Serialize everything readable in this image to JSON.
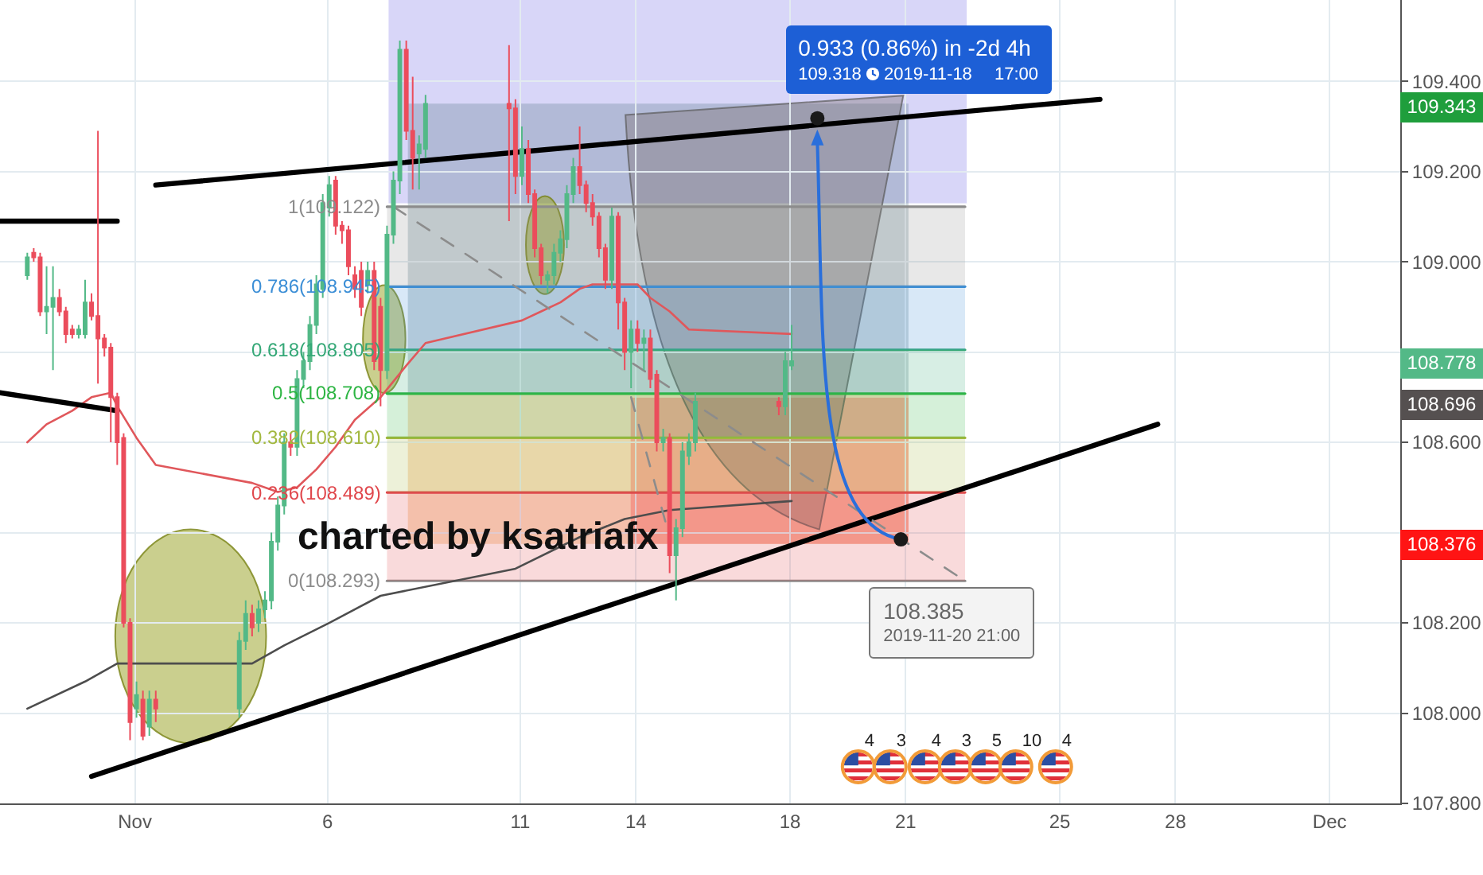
{
  "chart_data": {
    "type": "candlestick",
    "x": [
      "2019-10-29T05:00",
      "2019-10-29T09:00",
      "2019-10-29T13:00",
      "2019-10-29T17:00",
      "2019-10-29T21:00",
      "2019-10-30T01:00",
      "2019-10-30T05:00",
      "2019-10-30T09:00",
      "2019-10-30T13:00",
      "2019-10-30T17:00",
      "2019-10-30T21:00",
      "2019-10-31T01:00",
      "2019-10-31T05:00",
      "2019-10-31T09:00",
      "2019-10-31T13:00",
      "2019-10-31T17:00",
      "2019-10-31T21:00",
      "2019-11-01T01:00",
      "2019-11-01T05:00",
      "2019-11-01T09:00",
      "2019-11-01T13:00",
      "2019-11-03T17:00",
      "2019-11-03T21:00",
      "2019-11-04T01:00",
      "2019-11-04T05:00",
      "2019-11-04T09:00",
      "2019-11-04T13:00",
      "2019-11-04T17:00",
      "2019-11-04T21:00",
      "2019-11-05T01:00",
      "2019-11-05T05:00",
      "2019-11-05T09:00",
      "2019-11-05T13:00",
      "2019-11-05T17:00",
      "2019-11-05T21:00",
      "2019-11-06T01:00",
      "2019-11-06T05:00",
      "2019-11-06T09:00",
      "2019-11-06T13:00",
      "2019-11-06T17:00",
      "2019-11-06T21:00",
      "2019-11-07T01:00",
      "2019-11-07T05:00",
      "2019-11-07T09:00",
      "2019-11-07T13:00",
      "2019-11-07T17:00",
      "2019-11-07T21:00",
      "2019-11-08T01:00",
      "2019-11-08T05:00",
      "2019-11-08T09:00",
      "2019-11-08T13:00",
      "2019-11-10T17:00",
      "2019-11-10T21:00",
      "2019-11-11T01:00",
      "2019-11-11T05:00",
      "2019-11-11T09:00",
      "2019-11-11T13:00",
      "2019-11-11T17:00",
      "2019-11-11T21:00",
      "2019-11-12T01:00",
      "2019-11-12T05:00",
      "2019-11-12T09:00",
      "2019-11-12T13:00",
      "2019-11-12T17:00",
      "2019-11-12T21:00",
      "2019-11-13T01:00",
      "2019-11-13T05:00",
      "2019-11-13T09:00",
      "2019-11-13T13:00",
      "2019-11-13T17:00",
      "2019-11-13T21:00",
      "2019-11-14T01:00",
      "2019-11-14T05:00",
      "2019-11-14T09:00",
      "2019-11-14T13:00",
      "2019-11-14T17:00",
      "2019-11-14T21:00",
      "2019-11-15T01:00",
      "2019-11-15T05:00",
      "2019-11-15T09:00",
      "2019-11-15T13:00",
      "2019-11-17T17:00",
      "2019-11-17T21:00",
      "2019-11-18T01:00"
    ],
    "ohlc": [
      [
        108.97,
        109.02,
        108.96,
        109.01
      ],
      [
        109.02,
        109.03,
        109.0,
        109.01
      ],
      [
        109.01,
        109.02,
        108.88,
        108.89
      ],
      [
        108.89,
        108.99,
        108.84,
        108.9
      ],
      [
        108.9,
        108.99,
        108.76,
        108.92
      ],
      [
        108.92,
        108.94,
        108.88,
        108.89
      ],
      [
        108.89,
        108.9,
        108.82,
        108.84
      ],
      [
        108.85,
        108.86,
        108.83,
        108.84
      ],
      [
        108.84,
        108.86,
        108.83,
        108.85
      ],
      [
        108.84,
        108.96,
        108.83,
        108.91
      ],
      [
        108.91,
        108.93,
        108.87,
        108.88
      ],
      [
        108.88,
        109.29,
        108.73,
        108.83
      ],
      [
        108.83,
        108.84,
        108.79,
        108.81
      ],
      [
        108.81,
        108.82,
        108.6,
        108.7
      ],
      [
        108.7,
        108.71,
        108.55,
        108.6
      ],
      [
        108.61,
        108.62,
        108.19,
        108.2
      ],
      [
        108.2,
        108.21,
        107.94,
        107.98
      ],
      [
        108.01,
        108.07,
        107.99,
        108.04
      ],
      [
        108.03,
        108.05,
        107.94,
        107.95
      ],
      [
        107.97,
        108.05,
        107.95,
        108.03
      ],
      [
        108.03,
        108.05,
        107.98,
        108.01
      ],
      [
        108.01,
        108.18,
        107.99,
        108.16
      ],
      [
        108.16,
        108.25,
        108.14,
        108.22
      ],
      [
        108.22,
        108.24,
        108.17,
        108.19
      ],
      [
        108.2,
        108.25,
        108.18,
        108.23
      ],
      [
        108.23,
        108.27,
        108.21,
        108.25
      ],
      [
        108.25,
        108.4,
        108.23,
        108.38
      ],
      [
        108.38,
        108.48,
        108.36,
        108.46
      ],
      [
        108.46,
        108.62,
        108.44,
        108.6
      ],
      [
        108.6,
        108.62,
        108.57,
        108.59
      ],
      [
        108.59,
        108.76,
        108.57,
        108.74
      ],
      [
        108.74,
        108.8,
        108.72,
        108.78
      ],
      [
        108.78,
        108.88,
        108.76,
        108.86
      ],
      [
        108.86,
        108.97,
        108.84,
        108.95
      ],
      [
        108.94,
        109.15,
        108.92,
        109.13
      ],
      [
        109.12,
        109.19,
        109.1,
        109.17
      ],
      [
        109.18,
        109.19,
        109.06,
        109.08
      ],
      [
        109.08,
        109.09,
        109.04,
        109.07
      ],
      [
        109.07,
        109.08,
        108.97,
        108.99
      ],
      [
        108.97,
        108.99,
        108.92,
        108.94
      ],
      [
        108.98,
        109.0,
        108.88,
        108.9
      ],
      [
        108.95,
        109.0,
        108.93,
        108.98
      ],
      [
        108.98,
        109.0,
        108.76,
        108.78
      ],
      [
        108.9,
        108.92,
        108.68,
        108.76
      ],
      [
        108.76,
        109.08,
        108.74,
        109.06
      ],
      [
        109.06,
        109.2,
        109.04,
        109.18
      ],
      [
        109.18,
        109.49,
        109.15,
        109.47
      ],
      [
        109.47,
        109.49,
        109.27,
        109.29
      ],
      [
        109.29,
        109.41,
        109.16,
        109.23
      ],
      [
        109.24,
        109.28,
        109.16,
        109.26
      ],
      [
        109.25,
        109.37,
        109.23,
        109.35
      ],
      [
        109.35,
        109.48,
        109.09,
        109.34
      ],
      [
        109.34,
        109.36,
        109.15,
        109.19
      ],
      [
        109.19,
        109.3,
        109.17,
        109.25
      ],
      [
        109.25,
        109.27,
        109.13,
        109.15
      ],
      [
        109.15,
        109.16,
        109.01,
        109.03
      ],
      [
        109.03,
        109.04,
        108.95,
        108.97
      ],
      [
        108.96,
        108.98,
        108.93,
        108.97
      ],
      [
        108.97,
        109.04,
        108.95,
        109.02
      ],
      [
        109.02,
        109.07,
        109.0,
        109.05
      ],
      [
        109.05,
        109.17,
        109.03,
        109.15
      ],
      [
        109.15,
        109.23,
        109.13,
        109.21
      ],
      [
        109.21,
        109.3,
        109.15,
        109.17
      ],
      [
        109.17,
        109.18,
        109.11,
        109.13
      ],
      [
        109.13,
        109.15,
        109.08,
        109.1
      ],
      [
        109.1,
        109.11,
        109.01,
        109.03
      ],
      [
        109.03,
        109.04,
        108.94,
        108.96
      ],
      [
        108.96,
        109.12,
        108.94,
        109.1
      ],
      [
        109.1,
        109.11,
        108.85,
        108.91
      ],
      [
        108.91,
        108.92,
        108.76,
        108.8
      ],
      [
        108.8,
        108.87,
        108.72,
        108.85
      ],
      [
        108.85,
        108.87,
        108.8,
        108.82
      ],
      [
        108.82,
        108.85,
        108.76,
        108.83
      ],
      [
        108.83,
        108.85,
        108.72,
        108.74
      ],
      [
        108.75,
        108.76,
        108.58,
        108.6
      ],
      [
        108.6,
        108.63,
        108.58,
        108.61
      ],
      [
        108.61,
        108.62,
        108.31,
        108.35
      ],
      [
        108.35,
        108.43,
        108.25,
        108.41
      ],
      [
        108.41,
        108.6,
        108.39,
        108.58
      ],
      [
        108.57,
        108.62,
        108.55,
        108.6
      ],
      [
        108.6,
        108.71,
        108.58,
        108.69
      ],
      [
        108.69,
        108.7,
        108.66,
        108.68
      ],
      [
        108.68,
        108.8,
        108.66,
        108.78
      ],
      [
        108.77,
        108.86,
        108.76,
        108.78
      ]
    ],
    "colors": [
      "#53b987",
      "#eb4d5c",
      "#eb4d5c",
      "#53b987",
      "#53b987",
      "#eb4d5c",
      "#eb4d5c",
      "#eb4d5c",
      "#53b987",
      "#53b987",
      "#eb4d5c",
      "#eb4d5c",
      "#eb4d5c",
      "#eb4d5c",
      "#eb4d5c",
      "#eb4d5c",
      "#eb4d5c",
      "#53b987",
      "#eb4d5c",
      "#53b987",
      "#eb4d5c",
      "#53b987",
      "#53b987",
      "#eb4d5c",
      "#53b987",
      "#53b987",
      "#53b987",
      "#53b987",
      "#53b987",
      "#eb4d5c",
      "#53b987",
      "#53b987",
      "#53b987",
      "#53b987",
      "#53b987",
      "#53b987",
      "#eb4d5c",
      "#eb4d5c",
      "#eb4d5c",
      "#eb4d5c",
      "#eb4d5c",
      "#53b987",
      "#eb4d5c",
      "#eb4d5c",
      "#53b987",
      "#53b987",
      "#53b987",
      "#eb4d5c",
      "#eb4d5c",
      "#53b987",
      "#53b987",
      "#eb4d5c",
      "#eb4d5c",
      "#53b987",
      "#eb4d5c",
      "#eb4d5c",
      "#eb4d5c",
      "#53b987",
      "#53b987",
      "#53b987",
      "#53b987",
      "#53b987",
      "#eb4d5c",
      "#eb4d5c",
      "#eb4d5c",
      "#eb4d5c",
      "#eb4d5c",
      "#53b987",
      "#eb4d5c",
      "#eb4d5c",
      "#53b987",
      "#eb4d5c",
      "#53b987",
      "#eb4d5c",
      "#eb4d5c",
      "#53b987",
      "#eb4d5c",
      "#53b987",
      "#53b987",
      "#53b987",
      "#53b987",
      "#eb4d5c",
      "#53b987",
      "#53b987"
    ],
    "series": [
      {
        "type": "line",
        "name": "0(108.293)",
        "color": "#8c8c8c",
        "x": [
          "2019-11-07T13:00",
          "2019-11-22T13:00"
        ],
        "values": [
          108.293,
          108.293
        ]
      },
      {
        "type": "line",
        "name": "0.236(108.489)",
        "color": "#e0474c",
        "x": [
          "2019-11-07T13:00",
          "2019-11-22T13:00"
        ],
        "values": [
          108.489,
          108.489
        ],
        "lower": [
          108.293,
          108.293
        ],
        "upper": [
          108.489,
          108.489
        ]
      },
      {
        "type": "line",
        "name": "0.382(108.610)",
        "color": "#a3b83f",
        "x": [
          "2019-11-07T13:00",
          "2019-11-22T13:00"
        ],
        "values": [
          108.61,
          108.61
        ],
        "lower": [
          108.489,
          108.489
        ],
        "upper": [
          108.61,
          108.61
        ]
      },
      {
        "type": "line",
        "name": "0.5(108.708)",
        "color": "#2db543",
        "x": [
          "2019-11-07T13:00",
          "2019-11-22T13:00"
        ],
        "values": [
          108.708,
          108.708
        ],
        "lower": [
          108.61,
          108.61
        ],
        "upper": [
          108.708,
          108.708
        ]
      },
      {
        "type": "line",
        "name": "0.618(108.805)",
        "color": "#35a877",
        "x": [
          "2019-11-07T13:00",
          "2019-11-22T13:00"
        ],
        "values": [
          108.805,
          108.805
        ],
        "lower": [
          108.708,
          108.708
        ],
        "upper": [
          108.805,
          108.805
        ]
      },
      {
        "type": "line",
        "name": "0.786(108.945)",
        "color": "#3b8ed6",
        "x": [
          "2019-11-07T13:00",
          "2019-11-22T13:00"
        ],
        "values": [
          108.945,
          108.945
        ],
        "lower": [
          108.805,
          108.805
        ],
        "upper": [
          108.945,
          108.945
        ]
      },
      {
        "type": "line",
        "name": "1(109.122)",
        "color": "#8c8c8c",
        "x": [
          "2019-11-07T13:00",
          "2019-11-22T13:00"
        ],
        "values": [
          109.122,
          109.122
        ],
        "lower": [
          108.945,
          108.945
        ],
        "upper": [
          109.122,
          109.122
        ]
      },
      {
        "type": "line",
        "color": "#e0575b",
        "x": [
          "2019-10-29T05:00",
          "2019-10-29T17:00",
          "2019-10-30T09:00",
          "2019-10-30T21:00",
          "2019-10-31T09:00",
          "2019-10-31T13:00",
          "2019-11-01T01:00",
          "2019-11-01T13:00",
          "2019-11-04T01:00",
          "2019-11-04T17:00",
          "2019-11-05T05:00",
          "2019-11-05T17:00",
          "2019-11-06T05:00",
          "2019-11-06T17:00",
          "2019-11-07T09:00",
          "2019-11-08T01:00",
          "2019-11-08T13:00",
          "2019-11-11T01:00",
          "2019-11-11T13:00",
          "2019-11-12T01:00",
          "2019-11-12T13:00",
          "2019-11-12T21:00",
          "2019-11-13T13:00",
          "2019-11-14T01:00",
          "2019-11-14T09:00",
          "2019-11-14T21:00",
          "2019-11-15T09:00",
          "2019-11-18T01:00"
        ],
        "values": [
          108.6,
          108.64,
          108.67,
          108.7,
          108.71,
          108.68,
          108.61,
          108.55,
          108.51,
          108.49,
          108.5,
          108.54,
          108.59,
          108.65,
          108.7,
          108.77,
          108.82,
          108.87,
          108.89,
          108.91,
          108.94,
          108.95,
          108.95,
          108.95,
          108.92,
          108.89,
          108.85,
          108.84
        ]
      },
      {
        "type": "line",
        "color": "#4d4d4d",
        "x": [
          "2019-10-29T05:00",
          "2019-10-30T17:00",
          "2019-10-31T13:00",
          "2019-11-01T01:00",
          "2019-11-04T01:00",
          "2019-11-04T21:00",
          "2019-11-06T01:00",
          "2019-11-07T09:00",
          "2019-11-10T21:00",
          "2019-11-12T13:00",
          "2019-11-13T17:00",
          "2019-11-14T21:00",
          "2019-11-18T01:00"
        ],
        "values": [
          108.01,
          108.07,
          108.11,
          108.11,
          108.11,
          108.15,
          108.2,
          108.26,
          108.32,
          108.39,
          108.43,
          108.45,
          108.47
        ]
      },
      {
        "type": "line",
        "color": "#000000",
        "x": [
          "2019-11-01T13:00",
          "2019-11-26T01:00"
        ],
        "values": [
          109.17,
          109.36
        ]
      },
      {
        "type": "line",
        "color": "#000000",
        "x": [
          "2019-10-30T21:00",
          "2019-11-27T13:00"
        ],
        "values": [
          107.86,
          108.64
        ]
      },
      {
        "type": "line",
        "color": "#000000",
        "x": [
          "2019-10-28T12:00",
          "2019-10-31T13:00"
        ],
        "values": [
          109.09,
          109.09
        ]
      },
      {
        "type": "line",
        "color": "#000000",
        "x": [
          "2019-10-28T12:00",
          "2019-10-31T13:00"
        ],
        "values": [
          108.71,
          108.67
        ]
      },
      {
        "type": "line",
        "color": "#8c8c8c",
        "line_style": "dashed",
        "x": [
          "2019-11-07T17:00",
          "2019-11-22T13:00"
        ],
        "values": [
          109.122,
          108.293
        ]
      },
      {
        "type": "line",
        "color": "#8c8c8c",
        "line_style": "dashed",
        "x": [
          "2019-11-13T21:00",
          "2019-11-14T21:00"
        ],
        "values": [
          108.7,
          108.39
        ]
      }
    ],
    "xlim": [
      "2019-10-28T12:00",
      "2019-12-03T20:00"
    ],
    "xticks": [
      {
        "value": "2019-11-01",
        "label": "Nov"
      },
      {
        "value": "2019-11-06",
        "label": "6"
      },
      {
        "value": "2019-11-11",
        "label": "11"
      },
      {
        "value": "2019-11-14",
        "label": "14"
      },
      {
        "value": "2019-11-18",
        "label": "18"
      },
      {
        "value": "2019-11-21",
        "label": "21"
      },
      {
        "value": "2019-11-25",
        "label": "25"
      },
      {
        "value": "2019-11-28",
        "label": "28"
      },
      {
        "value": "2019-12-02",
        "label": "Dec"
      }
    ],
    "ylim": [
      107.8,
      109.58
    ],
    "yticks": [
      {
        "value": 107.8,
        "label": "107.800"
      },
      {
        "value": 108,
        "label": "108.000"
      },
      {
        "value": 108.2,
        "label": "108.200"
      },
      {
        "value": 108.4,
        "label": null
      },
      {
        "value": 108.6,
        "label": "108.600"
      },
      {
        "value": 108.8,
        "label": null
      },
      {
        "value": 109,
        "label": "109.000"
      },
      {
        "value": 109.2,
        "label": "109.200"
      },
      {
        "value": 109.4,
        "label": "109.400"
      }
    ],
    "grid": true,
    "annotations": [
      "charted by ksatriafx",
      {
        "text": "0.933 (0.86%) in -2d 4h\n109.318 2019-11-18 17:00",
        "x": "2019-11-18T17:00",
        "y": 109.318
      },
      {
        "text": "108.385\n2019-11-20 21:00",
        "x": "2019-11-20T21:00",
        "y": 108.385
      },
      "109.343",
      "108.778",
      "108.696",
      "108.376",
      "4",
      "3",
      "4",
      "3",
      "5",
      "10",
      "4"
    ]
  }
}
